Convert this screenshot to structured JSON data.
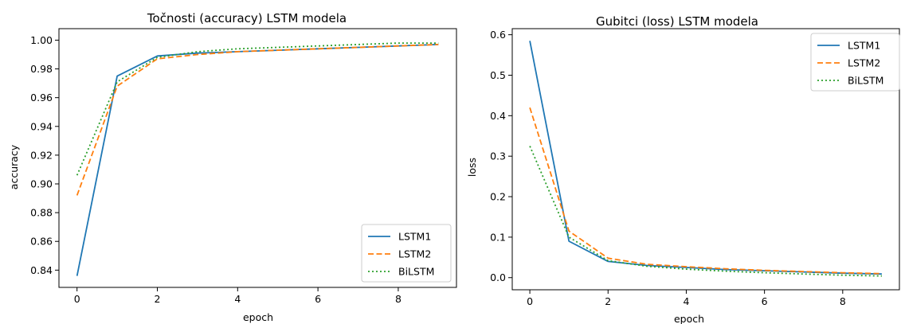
{
  "chart_data": [
    {
      "type": "line",
      "title": "Točnosti (accuracy) LSTM modela",
      "xlabel": "epoch",
      "ylabel": "accuracy",
      "xlim": [
        -0.45,
        9.45
      ],
      "ylim": [
        0.828,
        1.008
      ],
      "xticks": [
        0,
        2,
        4,
        6,
        8
      ],
      "yticks": [
        0.84,
        0.86,
        0.88,
        0.9,
        0.92,
        0.94,
        0.96,
        0.98,
        1.0
      ],
      "ytick_labels": [
        "0.84",
        "0.86",
        "0.88",
        "0.90",
        "0.92",
        "0.94",
        "0.96",
        "0.98",
        "1.00"
      ],
      "grid": false,
      "legend_position": "lower-right",
      "x": [
        0,
        1,
        2,
        3,
        4,
        5,
        6,
        7,
        8,
        9
      ],
      "series": [
        {
          "name": "LSTM1",
          "color": "#1f77b4",
          "dash": "solid",
          "values": [
            0.836,
            0.975,
            0.989,
            0.991,
            0.992,
            0.993,
            0.994,
            0.995,
            0.996,
            0.997
          ]
        },
        {
          "name": "LSTM2",
          "color": "#ff7f0e",
          "dash": "dashed",
          "values": [
            0.892,
            0.968,
            0.987,
            0.99,
            0.992,
            0.993,
            0.994,
            0.995,
            0.996,
            0.997
          ]
        },
        {
          "name": "BiLSTM",
          "color": "#2ca02c",
          "dash": "dotted",
          "values": [
            0.906,
            0.971,
            0.988,
            0.992,
            0.994,
            0.995,
            0.996,
            0.997,
            0.998,
            0.998
          ]
        }
      ]
    },
    {
      "type": "line",
      "title": "Gubitci (loss) LSTM modela",
      "xlabel": "epoch",
      "ylabel": "loss",
      "xlim": [
        -0.45,
        9.45
      ],
      "ylim": [
        -0.03,
        0.615
      ],
      "xticks": [
        0,
        2,
        4,
        6,
        8
      ],
      "yticks": [
        0.0,
        0.1,
        0.2,
        0.3,
        0.4,
        0.5,
        0.6
      ],
      "ytick_labels": [
        "0.0",
        "0.1",
        "0.2",
        "0.3",
        "0.4",
        "0.5",
        "0.6"
      ],
      "grid": false,
      "legend_position": "upper-right",
      "x": [
        0,
        1,
        2,
        3,
        4,
        5,
        6,
        7,
        8,
        9
      ],
      "series": [
        {
          "name": "LSTM1",
          "color": "#1f77b4",
          "dash": "solid",
          "values": [
            0.585,
            0.09,
            0.04,
            0.03,
            0.025,
            0.02,
            0.017,
            0.014,
            0.011,
            0.009
          ]
        },
        {
          "name": "LSTM2",
          "color": "#ff7f0e",
          "dash": "dashed",
          "values": [
            0.42,
            0.115,
            0.048,
            0.033,
            0.027,
            0.022,
            0.018,
            0.015,
            0.012,
            0.01
          ]
        },
        {
          "name": "BiLSTM",
          "color": "#2ca02c",
          "dash": "dotted",
          "values": [
            0.325,
            0.1,
            0.042,
            0.028,
            0.021,
            0.016,
            0.012,
            0.009,
            0.006,
            0.004
          ]
        }
      ]
    }
  ]
}
